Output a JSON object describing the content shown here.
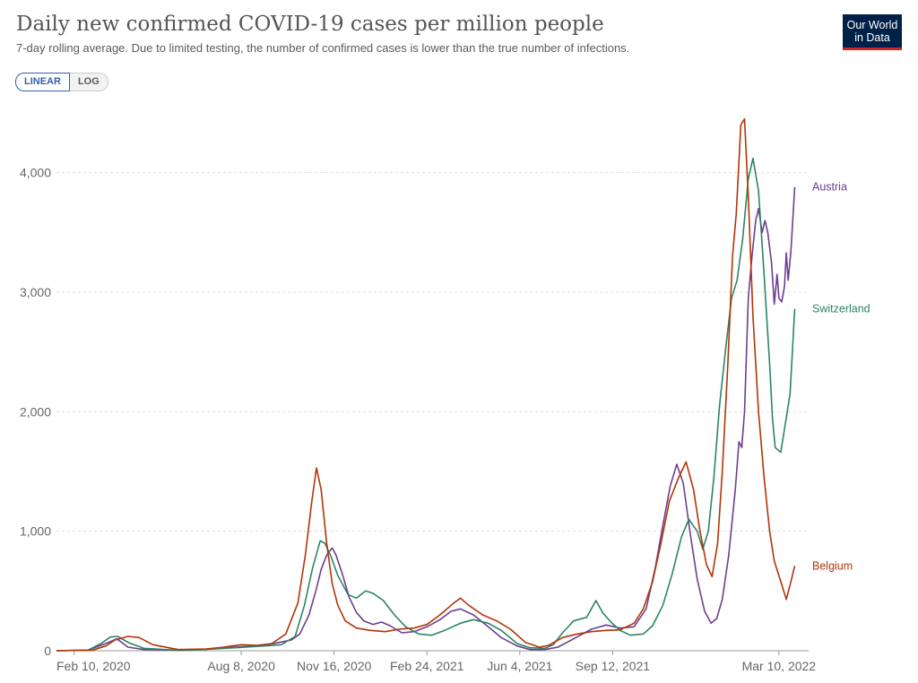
{
  "header": {
    "title": "Daily new confirmed COVID-19 cases per million people",
    "subtitle": "7-day rolling average. Due to limited testing, the number of confirmed cases is lower than the true number of infections.",
    "logo_line1": "Our World",
    "logo_line2": "in Data"
  },
  "controls": {
    "linear_label": "LINEAR",
    "log_label": "LOG",
    "selected": "LINEAR"
  },
  "chart_data": {
    "type": "line",
    "title": "Daily new confirmed COVID-19 cases per million people",
    "subtitle": "7-day rolling average. Due to limited testing, the number of confirmed cases is lower than the true number of infections.",
    "xlabel": "",
    "ylabel": "",
    "x_ticks": [
      "Feb 10, 2020",
      "Aug 8, 2020",
      "Nov 16, 2020",
      "Feb 24, 2021",
      "Jun 4, 2021",
      "Sep 12, 2021",
      "Mar 10, 2022"
    ],
    "y_ticks": [
      "0",
      "1,000",
      "2,000",
      "3,000",
      "4,000"
    ],
    "xlim": [
      "2020-01-22",
      "2022-04-11"
    ],
    "ylim": [
      0,
      4500
    ],
    "grid": "horizontal dashed",
    "legend": "labels at right end of lines",
    "series": [
      {
        "name": "Austria",
        "color": "#6d3e91",
        "points": [
          [
            "2020-01-22",
            0
          ],
          [
            "2020-02-25",
            5
          ],
          [
            "2020-03-15",
            60
          ],
          [
            "2020-03-27",
            100
          ],
          [
            "2020-04-08",
            30
          ],
          [
            "2020-04-25",
            10
          ],
          [
            "2020-06-01",
            5
          ],
          [
            "2020-07-01",
            12
          ],
          [
            "2020-08-01",
            30
          ],
          [
            "2020-09-01",
            45
          ],
          [
            "2020-09-15",
            65
          ],
          [
            "2020-10-01",
            90
          ],
          [
            "2020-10-10",
            140
          ],
          [
            "2020-10-20",
            300
          ],
          [
            "2020-10-28",
            520
          ],
          [
            "2020-11-02",
            680
          ],
          [
            "2020-11-08",
            800
          ],
          [
            "2020-11-14",
            860
          ],
          [
            "2020-11-18",
            800
          ],
          [
            "2020-11-25",
            640
          ],
          [
            "2020-12-02",
            450
          ],
          [
            "2020-12-10",
            320
          ],
          [
            "2020-12-18",
            250
          ],
          [
            "2020-12-28",
            220
          ],
          [
            "2021-01-06",
            240
          ],
          [
            "2021-01-15",
            210
          ],
          [
            "2021-01-28",
            150
          ],
          [
            "2021-02-10",
            160
          ],
          [
            "2021-02-24",
            200
          ],
          [
            "2021-03-10",
            260
          ],
          [
            "2021-03-22",
            330
          ],
          [
            "2021-04-01",
            350
          ],
          [
            "2021-04-15",
            300
          ],
          [
            "2021-05-01",
            200
          ],
          [
            "2021-05-15",
            110
          ],
          [
            "2021-06-01",
            40
          ],
          [
            "2021-06-15",
            10
          ],
          [
            "2021-07-01",
            10
          ],
          [
            "2021-07-15",
            30
          ],
          [
            "2021-08-01",
            100
          ],
          [
            "2021-08-20",
            180
          ],
          [
            "2021-09-05",
            215
          ],
          [
            "2021-09-20",
            190
          ],
          [
            "2021-10-05",
            200
          ],
          [
            "2021-10-18",
            350
          ],
          [
            "2021-10-28",
            700
          ],
          [
            "2021-11-05",
            1050
          ],
          [
            "2021-11-13",
            1380
          ],
          [
            "2021-11-20",
            1560
          ],
          [
            "2021-11-27",
            1400
          ],
          [
            "2021-12-05",
            950
          ],
          [
            "2021-12-12",
            600
          ],
          [
            "2021-12-20",
            330
          ],
          [
            "2021-12-27",
            230
          ],
          [
            "2022-01-02",
            270
          ],
          [
            "2022-01-08",
            430
          ],
          [
            "2022-01-15",
            800
          ],
          [
            "2022-01-22",
            1350
          ],
          [
            "2022-01-26",
            1750
          ],
          [
            "2022-01-29",
            1700
          ],
          [
            "2022-02-01",
            2000
          ],
          [
            "2022-02-05",
            2950
          ],
          [
            "2022-02-09",
            3300
          ],
          [
            "2022-02-13",
            3600
          ],
          [
            "2022-02-16",
            3700
          ],
          [
            "2022-02-20",
            3500
          ],
          [
            "2022-02-23",
            3600
          ],
          [
            "2022-02-26",
            3500
          ],
          [
            "2022-03-02",
            3250
          ],
          [
            "2022-03-05",
            2900
          ],
          [
            "2022-03-08",
            3150
          ],
          [
            "2022-03-10",
            2950
          ],
          [
            "2022-03-13",
            2920
          ],
          [
            "2022-03-16",
            3050
          ],
          [
            "2022-03-18",
            3330
          ],
          [
            "2022-03-20",
            3100
          ],
          [
            "2022-03-23",
            3350
          ],
          [
            "2022-03-27",
            3880
          ]
        ]
      },
      {
        "name": "Switzerland",
        "color": "#2c8465",
        "points": [
          [
            "2020-01-22",
            0
          ],
          [
            "2020-02-25",
            5
          ],
          [
            "2020-03-10",
            60
          ],
          [
            "2020-03-20",
            115
          ],
          [
            "2020-03-28",
            120
          ],
          [
            "2020-04-08",
            70
          ],
          [
            "2020-04-25",
            20
          ],
          [
            "2020-06-01",
            3
          ],
          [
            "2020-07-01",
            12
          ],
          [
            "2020-08-01",
            25
          ],
          [
            "2020-09-01",
            40
          ],
          [
            "2020-09-20",
            50
          ],
          [
            "2020-10-05",
            120
          ],
          [
            "2020-10-15",
            380
          ],
          [
            "2020-10-24",
            700
          ],
          [
            "2020-11-01",
            920
          ],
          [
            "2020-11-06",
            900
          ],
          [
            "2020-11-12",
            800
          ],
          [
            "2020-11-20",
            630
          ],
          [
            "2020-12-01",
            470
          ],
          [
            "2020-12-10",
            440
          ],
          [
            "2020-12-20",
            500
          ],
          [
            "2020-12-28",
            480
          ],
          [
            "2021-01-08",
            420
          ],
          [
            "2021-01-20",
            300
          ],
          [
            "2021-02-01",
            200
          ],
          [
            "2021-02-15",
            140
          ],
          [
            "2021-03-01",
            130
          ],
          [
            "2021-03-15",
            170
          ],
          [
            "2021-04-01",
            230
          ],
          [
            "2021-04-15",
            260
          ],
          [
            "2021-05-01",
            230
          ],
          [
            "2021-05-15",
            170
          ],
          [
            "2021-06-01",
            60
          ],
          [
            "2021-06-15",
            25
          ],
          [
            "2021-07-01",
            20
          ],
          [
            "2021-07-10",
            50
          ],
          [
            "2021-07-20",
            150
          ],
          [
            "2021-08-01",
            250
          ],
          [
            "2021-08-15",
            280
          ],
          [
            "2021-08-25",
            420
          ],
          [
            "2021-09-01",
            320
          ],
          [
            "2021-09-10",
            240
          ],
          [
            "2021-09-20",
            170
          ],
          [
            "2021-10-01",
            130
          ],
          [
            "2021-10-15",
            140
          ],
          [
            "2021-10-25",
            210
          ],
          [
            "2021-11-05",
            380
          ],
          [
            "2021-11-15",
            640
          ],
          [
            "2021-11-25",
            950
          ],
          [
            "2021-12-03",
            1100
          ],
          [
            "2021-12-12",
            1000
          ],
          [
            "2021-12-18",
            850
          ],
          [
            "2021-12-24",
            1000
          ],
          [
            "2021-12-30",
            1450
          ],
          [
            "2022-01-05",
            2050
          ],
          [
            "2022-01-12",
            2550
          ],
          [
            "2022-01-18",
            2950
          ],
          [
            "2022-01-24",
            3100
          ],
          [
            "2022-01-30",
            3450
          ],
          [
            "2022-02-05",
            3950
          ],
          [
            "2022-02-10",
            4120
          ],
          [
            "2022-02-16",
            3850
          ],
          [
            "2022-02-22",
            3150
          ],
          [
            "2022-02-28",
            2400
          ],
          [
            "2022-03-03",
            1950
          ],
          [
            "2022-03-06",
            1700
          ],
          [
            "2022-03-12",
            1660
          ],
          [
            "2022-03-18",
            1950
          ],
          [
            "2022-03-22",
            2150
          ],
          [
            "2022-03-27",
            2860
          ]
        ]
      },
      {
        "name": "Belgium",
        "color": "#b13507",
        "points": [
          [
            "2020-01-22",
            0
          ],
          [
            "2020-03-01",
            5
          ],
          [
            "2020-03-15",
            40
          ],
          [
            "2020-03-25",
            90
          ],
          [
            "2020-04-08",
            120
          ],
          [
            "2020-04-20",
            110
          ],
          [
            "2020-05-05",
            50
          ],
          [
            "2020-06-01",
            10
          ],
          [
            "2020-07-01",
            15
          ],
          [
            "2020-07-20",
            30
          ],
          [
            "2020-08-08",
            50
          ],
          [
            "2020-08-25",
            45
          ],
          [
            "2020-09-10",
            60
          ],
          [
            "2020-09-25",
            140
          ],
          [
            "2020-10-08",
            400
          ],
          [
            "2020-10-16",
            800
          ],
          [
            "2020-10-23",
            1250
          ],
          [
            "2020-10-28",
            1530
          ],
          [
            "2020-11-02",
            1350
          ],
          [
            "2020-11-08",
            900
          ],
          [
            "2020-11-14",
            560
          ],
          [
            "2020-11-20",
            380
          ],
          [
            "2020-11-28",
            250
          ],
          [
            "2020-12-10",
            190
          ],
          [
            "2020-12-25",
            170
          ],
          [
            "2021-01-10",
            160
          ],
          [
            "2021-01-25",
            180
          ],
          [
            "2021-02-10",
            190
          ],
          [
            "2021-02-24",
            220
          ],
          [
            "2021-03-10",
            300
          ],
          [
            "2021-03-25",
            400
          ],
          [
            "2021-04-01",
            440
          ],
          [
            "2021-04-10",
            380
          ],
          [
            "2021-04-25",
            300
          ],
          [
            "2021-05-10",
            250
          ],
          [
            "2021-05-25",
            180
          ],
          [
            "2021-06-10",
            70
          ],
          [
            "2021-06-25",
            30
          ],
          [
            "2021-07-05",
            45
          ],
          [
            "2021-07-20",
            110
          ],
          [
            "2021-08-05",
            140
          ],
          [
            "2021-08-20",
            160
          ],
          [
            "2021-09-05",
            170
          ],
          [
            "2021-09-20",
            175
          ],
          [
            "2021-10-05",
            230
          ],
          [
            "2021-10-15",
            350
          ],
          [
            "2021-10-25",
            580
          ],
          [
            "2021-11-03",
            900
          ],
          [
            "2021-11-12",
            1250
          ],
          [
            "2021-11-22",
            1450
          ],
          [
            "2021-11-30",
            1580
          ],
          [
            "2021-12-08",
            1350
          ],
          [
            "2021-12-15",
            1000
          ],
          [
            "2021-12-22",
            720
          ],
          [
            "2021-12-28",
            620
          ],
          [
            "2022-01-03",
            900
          ],
          [
            "2022-01-08",
            1500
          ],
          [
            "2022-01-14",
            2400
          ],
          [
            "2022-01-19",
            3300
          ],
          [
            "2022-01-23",
            3650
          ],
          [
            "2022-01-28",
            4400
          ],
          [
            "2022-02-01",
            4450
          ],
          [
            "2022-02-05",
            3800
          ],
          [
            "2022-02-10",
            2800
          ],
          [
            "2022-02-16",
            2000
          ],
          [
            "2022-02-22",
            1450
          ],
          [
            "2022-02-28",
            1000
          ],
          [
            "2022-03-05",
            750
          ],
          [
            "2022-03-12",
            580
          ],
          [
            "2022-03-18",
            430
          ],
          [
            "2022-03-22",
            550
          ],
          [
            "2022-03-27",
            710
          ]
        ]
      }
    ]
  }
}
